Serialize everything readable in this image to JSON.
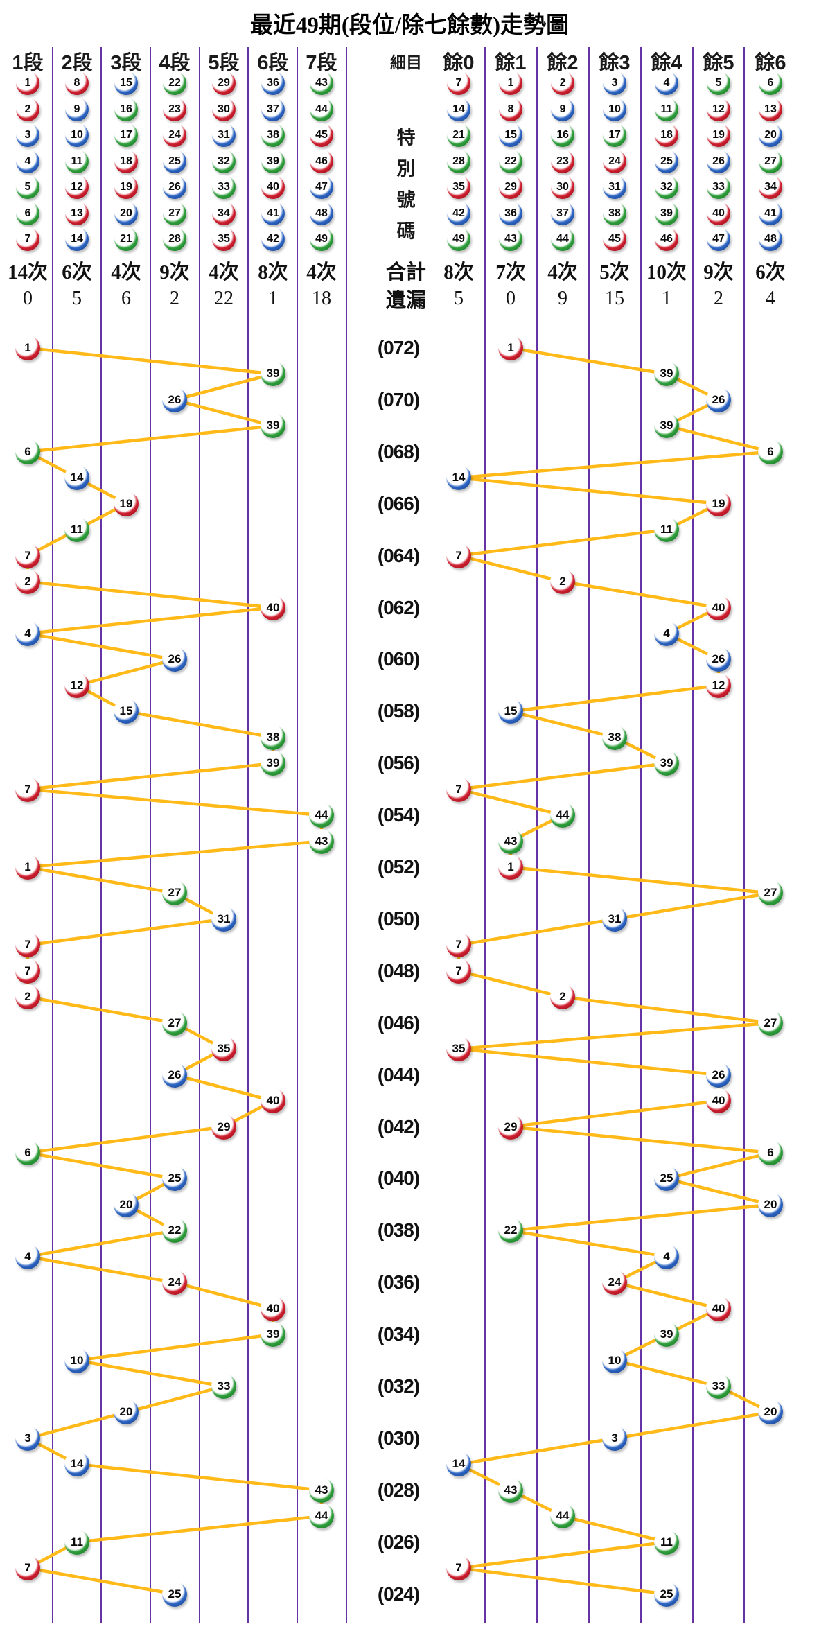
{
  "title": "最近49期(段位/除七餘數)走勢圖",
  "left_section": {
    "headers": [
      "1段",
      "2段",
      "3段",
      "4段",
      "5段",
      "6段",
      "7段"
    ],
    "columns": [
      [
        1,
        2,
        3,
        4,
        5,
        6,
        7
      ],
      [
        8,
        9,
        10,
        11,
        12,
        13,
        14
      ],
      [
        15,
        16,
        17,
        18,
        19,
        20,
        21
      ],
      [
        22,
        23,
        24,
        25,
        26,
        27,
        28
      ],
      [
        29,
        30,
        31,
        32,
        33,
        34,
        35
      ],
      [
        36,
        37,
        38,
        39,
        40,
        41,
        42
      ],
      [
        43,
        44,
        45,
        46,
        47,
        48,
        49
      ]
    ],
    "counts": [
      "14次",
      "6次",
      "4次",
      "9次",
      "4次",
      "8次",
      "4次"
    ],
    "misses": [
      "0",
      "5",
      "6",
      "2",
      "22",
      "1",
      "18"
    ]
  },
  "middle": {
    "header": "細目",
    "special_label": "特別號碼",
    "total_label": "合計",
    "miss_label": "遺漏"
  },
  "right_section": {
    "headers": [
      "餘0",
      "餘1",
      "餘2",
      "餘3",
      "餘4",
      "餘5",
      "餘6"
    ],
    "columns": [
      [
        7,
        14,
        21,
        28,
        35,
        42,
        49
      ],
      [
        1,
        8,
        15,
        22,
        29,
        36,
        43
      ],
      [
        2,
        9,
        16,
        23,
        30,
        37,
        44
      ],
      [
        3,
        10,
        17,
        24,
        31,
        38,
        45
      ],
      [
        4,
        11,
        18,
        25,
        32,
        39,
        46
      ],
      [
        5,
        12,
        19,
        26,
        33,
        40,
        47
      ],
      [
        6,
        13,
        20,
        27,
        34,
        41,
        48
      ]
    ],
    "counts": [
      "8次",
      "7次",
      "4次",
      "5次",
      "10次",
      "9次",
      "6次"
    ],
    "misses": [
      "5",
      "0",
      "9",
      "15",
      "1",
      "2",
      "4"
    ]
  },
  "ball_colors": {
    "red": [
      1,
      2,
      7,
      8,
      12,
      13,
      18,
      19,
      23,
      24,
      29,
      30,
      34,
      35,
      40,
      45,
      46
    ],
    "blue": [
      3,
      4,
      9,
      10,
      14,
      15,
      20,
      25,
      26,
      31,
      36,
      37,
      41,
      42,
      47,
      48
    ],
    "green": [
      5,
      6,
      11,
      16,
      17,
      21,
      22,
      27,
      28,
      32,
      33,
      38,
      39,
      43,
      44,
      49
    ],
    "red_hex": "#CE1F2F",
    "red_dark": "#8F0D18",
    "blue_hex": "#2D65C3",
    "blue_dark": "#153B80",
    "green_hex": "#2F9E3C",
    "green_dark": "#14701F"
  },
  "line_colors": {
    "grid_line": "#6633A6",
    "connector_line": "#FFBA1A"
  },
  "chart_data": {
    "type": "line",
    "title": "最近49期(段位/除七餘數)走勢圖",
    "x_axis_left_columns": [
      "1段",
      "2段",
      "3段",
      "4段",
      "5段",
      "6段",
      "7段"
    ],
    "x_axis_right_columns": [
      "餘0",
      "餘1",
      "餘2",
      "餘3",
      "餘4",
      "餘5",
      "餘6"
    ],
    "legend": "each row = one draw period; left chart plots special number by segment (1-7), right chart plots special number mod 7",
    "rows": [
      {
        "period": "(072)",
        "value": 1
      },
      {
        "period": "",
        "value": 39
      },
      {
        "period": "(070)",
        "value": 26
      },
      {
        "period": "",
        "value": 39
      },
      {
        "period": "(068)",
        "value": 6
      },
      {
        "period": "",
        "value": 14
      },
      {
        "period": "(066)",
        "value": 19
      },
      {
        "period": "",
        "value": 11
      },
      {
        "period": "(064)",
        "value": 7
      },
      {
        "period": "",
        "value": 2
      },
      {
        "period": "(062)",
        "value": 40
      },
      {
        "period": "",
        "value": 4
      },
      {
        "period": "(060)",
        "value": 26
      },
      {
        "period": "",
        "value": 12
      },
      {
        "period": "(058)",
        "value": 15
      },
      {
        "period": "",
        "value": 38
      },
      {
        "period": "(056)",
        "value": 39
      },
      {
        "period": "",
        "value": 7
      },
      {
        "period": "(054)",
        "value": 44
      },
      {
        "period": "",
        "value": 43
      },
      {
        "period": "(052)",
        "value": 1
      },
      {
        "period": "",
        "value": 27
      },
      {
        "period": "(050)",
        "value": 31
      },
      {
        "period": "",
        "value": 7
      },
      {
        "period": "(048)",
        "value": 7
      },
      {
        "period": "",
        "value": 2
      },
      {
        "period": "(046)",
        "value": 27
      },
      {
        "period": "",
        "value": 35
      },
      {
        "period": "(044)",
        "value": 26
      },
      {
        "period": "",
        "value": 40
      },
      {
        "period": "(042)",
        "value": 29
      },
      {
        "period": "",
        "value": 6
      },
      {
        "period": "(040)",
        "value": 25
      },
      {
        "period": "",
        "value": 20
      },
      {
        "period": "(038)",
        "value": 22
      },
      {
        "period": "",
        "value": 4
      },
      {
        "period": "(036)",
        "value": 24
      },
      {
        "period": "",
        "value": 40
      },
      {
        "period": "(034)",
        "value": 39
      },
      {
        "period": "",
        "value": 10
      },
      {
        "period": "(032)",
        "value": 33
      },
      {
        "period": "",
        "value": 20
      },
      {
        "period": "(030)",
        "value": 3
      },
      {
        "period": "",
        "value": 14
      },
      {
        "period": "(028)",
        "value": 43
      },
      {
        "period": "",
        "value": 44
      },
      {
        "period": "(026)",
        "value": 11
      },
      {
        "period": "",
        "value": 7
      },
      {
        "period": "(024)",
        "value": 25
      }
    ]
  }
}
